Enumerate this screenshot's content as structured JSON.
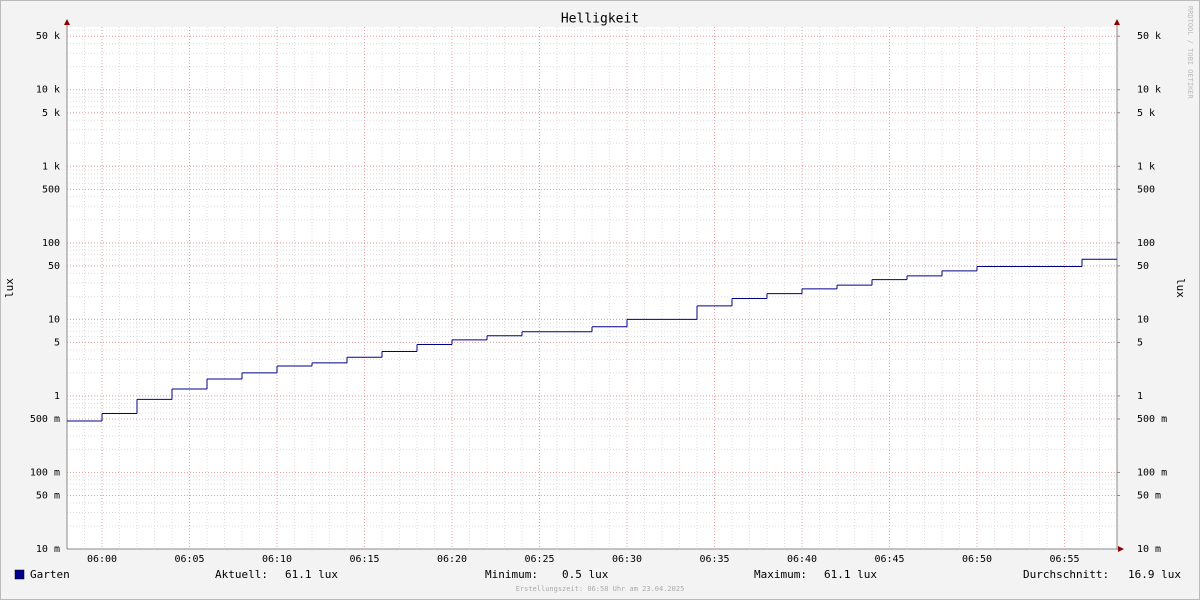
{
  "chart_data": {
    "type": "step-line",
    "title": "Helligkeit",
    "ylabel": "lux",
    "y2label": "lux",
    "log_scale": true,
    "grid": true,
    "x": [
      "05:58",
      "06:00",
      "06:02",
      "06:04",
      "06:06",
      "06:08",
      "06:10",
      "06:12",
      "06:14",
      "06:16",
      "06:18",
      "06:20",
      "06:22",
      "06:24",
      "06:28",
      "06:30",
      "06:34",
      "06:36",
      "06:38",
      "06:40",
      "06:42",
      "06:44",
      "06:46",
      "06:48",
      "06:50",
      "06:56"
    ],
    "series": [
      {
        "name": "Garten",
        "color": "#00008b",
        "values": [
          0.47,
          0.59,
          0.9,
          1.23,
          1.66,
          2.0,
          2.46,
          2.7,
          3.2,
          3.8,
          4.7,
          5.4,
          6.1,
          6.9,
          8.0,
          10,
          15,
          18.7,
          21.7,
          25,
          28,
          33,
          37,
          43,
          49,
          61.1
        ]
      }
    ],
    "xlim": [
      "05:58",
      "06:58"
    ],
    "xticks": [
      "06:00",
      "06:05",
      "06:10",
      "06:15",
      "06:20",
      "06:25",
      "06:30",
      "06:35",
      "06:40",
      "06:45",
      "06:50",
      "06:55"
    ],
    "ylim": [
      0.01,
      66000
    ],
    "yticks": [
      {
        "value": 0.01,
        "label": "10 m"
      },
      {
        "value": 0.05,
        "label": "50 m"
      },
      {
        "value": 0.1,
        "label": "100 m"
      },
      {
        "value": 0.5,
        "label": "500 m"
      },
      1,
      5,
      10,
      50,
      100,
      500,
      {
        "value": 1000,
        "label": "1 k"
      },
      {
        "value": 5000,
        "label": "5 k"
      },
      {
        "value": 10000,
        "label": "10 k"
      },
      {
        "value": 50000,
        "label": "50 k"
      }
    ],
    "y2lim": [
      0.01,
      66000
    ],
    "y2ticks": [
      {
        "value": 0.01,
        "label": "10 m"
      },
      {
        "value": 0.05,
        "label": "50 m"
      },
      {
        "value": 0.1,
        "label": "100 m"
      },
      {
        "value": 0.5,
        "label": "500 m"
      },
      1,
      5,
      10,
      50,
      100,
      500,
      {
        "value": 1000,
        "label": "1 k"
      },
      {
        "value": 5000,
        "label": "5 k"
      },
      {
        "value": 10000,
        "label": "10 k"
      },
      {
        "value": 50000,
        "label": "50 k"
      }
    ],
    "stats": [
      {
        "label": "Aktuell:",
        "value": "61.1 lux"
      },
      {
        "label": "Minimum:",
        "value": "0.5 lux"
      },
      {
        "label": "Maximum:",
        "value": "61.1 lux"
      },
      {
        "label": "Durchschnitt:",
        "value": "16.9 lux"
      }
    ],
    "footer": "Erstellungszeit: 06:58 Uhr am 23.04.2025",
    "watermark": "RRDTOOL / TOBI OETIKER"
  }
}
